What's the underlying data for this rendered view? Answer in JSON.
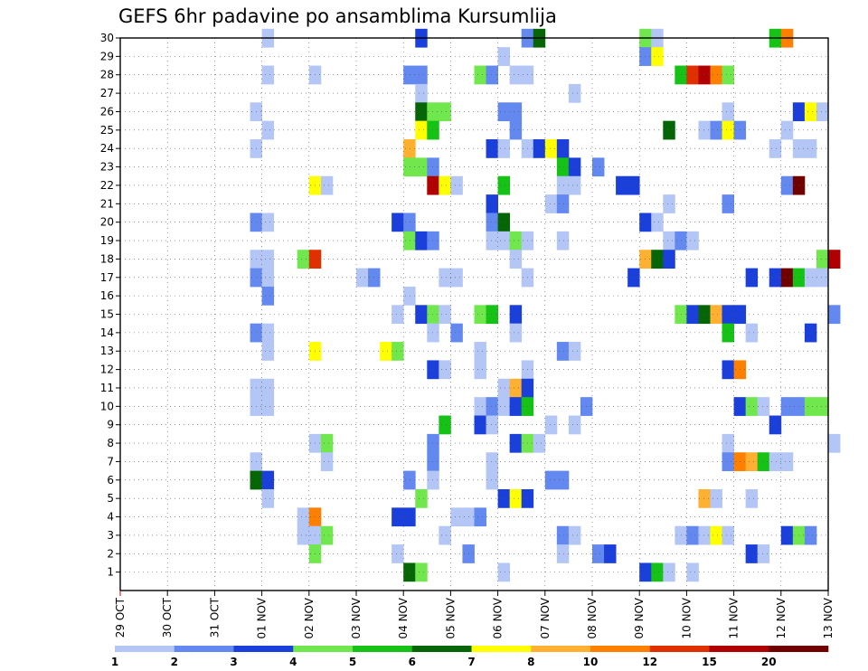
{
  "chart_data": {
    "type": "heatmap",
    "title": "GEFS 6hr padavine po ansamblima Kursumlija",
    "x_tick_labels": [
      "29 OCT",
      "30 OCT",
      "31 OCT",
      "01 NOV",
      "02 NOV",
      "03 NOV",
      "04 NOV",
      "05 NOV",
      "06 NOV",
      "07 NOV",
      "08 NOV",
      "09 NOV",
      "10 NOV",
      "11 NOV",
      "12 NOV",
      "13 NOV"
    ],
    "x_units": "6-hour steps from 29 OCT 00 UTC (4 per day)",
    "y_tick_labels": [
      "1",
      "2",
      "3",
      "4",
      "5",
      "6",
      "7",
      "8",
      "9",
      "10",
      "11",
      "12",
      "13",
      "14",
      "15",
      "16",
      "17",
      "18",
      "19",
      "20",
      "21",
      "22",
      "23",
      "24",
      "25",
      "26",
      "27",
      "28",
      "29",
      "30"
    ],
    "y_units": "ensemble member (0 to 30)",
    "grid": true,
    "colorbar": {
      "levels": [
        1,
        2,
        3,
        4,
        5,
        6,
        7,
        8,
        10,
        12,
        15,
        20
      ],
      "colors": [
        "#b3c6f5",
        "#6389f0",
        "#1a3fdb",
        "#70e84d",
        "#15c215",
        "#066606",
        "#ffff00",
        "#ffb030",
        "#ff7f00",
        "#e03000",
        "#b00000",
        "#700000"
      ]
    },
    "cells": [
      {
        "m": 30,
        "t": 12,
        "v": 1
      },
      {
        "m": 30,
        "t": 25,
        "v": 3
      },
      {
        "m": 30,
        "t": 34,
        "v": 2
      },
      {
        "m": 30,
        "t": 35,
        "v": 6
      },
      {
        "m": 30,
        "t": 44,
        "v": 4
      },
      {
        "m": 30,
        "t": 45,
        "v": 1
      },
      {
        "m": 30,
        "t": 55,
        "v": 5
      },
      {
        "m": 30,
        "t": 56,
        "v": 10
      },
      {
        "m": 29,
        "t": 32,
        "v": 1
      },
      {
        "m": 29,
        "t": 44,
        "v": 2
      },
      {
        "m": 29,
        "t": 45,
        "v": 7
      },
      {
        "m": 28,
        "t": 12,
        "v": 1
      },
      {
        "m": 28,
        "t": 16,
        "v": 1
      },
      {
        "m": 28,
        "t": 24,
        "v": 2
      },
      {
        "m": 28,
        "t": 25,
        "v": 2
      },
      {
        "m": 28,
        "t": 30,
        "v": 4
      },
      {
        "m": 28,
        "t": 31,
        "v": 2
      },
      {
        "m": 28,
        "t": 33,
        "v": 1
      },
      {
        "m": 28,
        "t": 34,
        "v": 1
      },
      {
        "m": 28,
        "t": 47,
        "v": 5
      },
      {
        "m": 28,
        "t": 48,
        "v": 12
      },
      {
        "m": 28,
        "t": 49,
        "v": 15
      },
      {
        "m": 28,
        "t": 50,
        "v": 10
      },
      {
        "m": 28,
        "t": 51,
        "v": 4
      },
      {
        "m": 27,
        "t": 25,
        "v": 1
      },
      {
        "m": 27,
        "t": 38,
        "v": 1
      },
      {
        "m": 26,
        "t": 11,
        "v": 1
      },
      {
        "m": 26,
        "t": 25,
        "v": 6
      },
      {
        "m": 26,
        "t": 26,
        "v": 4
      },
      {
        "m": 26,
        "t": 27,
        "v": 4
      },
      {
        "m": 26,
        "t": 32,
        "v": 2
      },
      {
        "m": 26,
        "t": 33,
        "v": 2
      },
      {
        "m": 26,
        "t": 51,
        "v": 1
      },
      {
        "m": 26,
        "t": 57,
        "v": 3
      },
      {
        "m": 26,
        "t": 58,
        "v": 7
      },
      {
        "m": 26,
        "t": 59,
        "v": 1
      },
      {
        "m": 25,
        "t": 12,
        "v": 1
      },
      {
        "m": 25,
        "t": 25,
        "v": 7
      },
      {
        "m": 25,
        "t": 26,
        "v": 5
      },
      {
        "m": 25,
        "t": 33,
        "v": 2
      },
      {
        "m": 25,
        "t": 46,
        "v": 6
      },
      {
        "m": 25,
        "t": 49,
        "v": 1
      },
      {
        "m": 25,
        "t": 50,
        "v": 2
      },
      {
        "m": 25,
        "t": 51,
        "v": 7
      },
      {
        "m": 25,
        "t": 52,
        "v": 2
      },
      {
        "m": 25,
        "t": 56,
        "v": 1
      },
      {
        "m": 24,
        "t": 11,
        "v": 1
      },
      {
        "m": 24,
        "t": 24,
        "v": 8
      },
      {
        "m": 24,
        "t": 31,
        "v": 3
      },
      {
        "m": 24,
        "t": 32,
        "v": 1
      },
      {
        "m": 24,
        "t": 34,
        "v": 1
      },
      {
        "m": 24,
        "t": 35,
        "v": 3
      },
      {
        "m": 24,
        "t": 36,
        "v": 7
      },
      {
        "m": 24,
        "t": 37,
        "v": 3
      },
      {
        "m": 24,
        "t": 55,
        "v": 1
      },
      {
        "m": 24,
        "t": 57,
        "v": 1
      },
      {
        "m": 24,
        "t": 58,
        "v": 1
      },
      {
        "m": 23,
        "t": 24,
        "v": 4
      },
      {
        "m": 23,
        "t": 25,
        "v": 4
      },
      {
        "m": 23,
        "t": 26,
        "v": 2
      },
      {
        "m": 23,
        "t": 37,
        "v": 5
      },
      {
        "m": 23,
        "t": 38,
        "v": 3
      },
      {
        "m": 23,
        "t": 40,
        "v": 2
      },
      {
        "m": 22,
        "t": 16,
        "v": 7
      },
      {
        "m": 22,
        "t": 17,
        "v": 1
      },
      {
        "m": 22,
        "t": 26,
        "v": 15
      },
      {
        "m": 22,
        "t": 27,
        "v": 7
      },
      {
        "m": 22,
        "t": 28,
        "v": 1
      },
      {
        "m": 22,
        "t": 32,
        "v": 5
      },
      {
        "m": 22,
        "t": 37,
        "v": 1
      },
      {
        "m": 22,
        "t": 38,
        "v": 1
      },
      {
        "m": 22,
        "t": 42,
        "v": 3
      },
      {
        "m": 22,
        "t": 43,
        "v": 3
      },
      {
        "m": 22,
        "t": 56,
        "v": 2
      },
      {
        "m": 22,
        "t": 57,
        "v": 20
      },
      {
        "m": 21,
        "t": 31,
        "v": 3
      },
      {
        "m": 21,
        "t": 36,
        "v": 1
      },
      {
        "m": 21,
        "t": 37,
        "v": 2
      },
      {
        "m": 21,
        "t": 46,
        "v": 1
      },
      {
        "m": 21,
        "t": 51,
        "v": 2
      },
      {
        "m": 20,
        "t": 11,
        "v": 2
      },
      {
        "m": 20,
        "t": 12,
        "v": 1
      },
      {
        "m": 20,
        "t": 23,
        "v": 3
      },
      {
        "m": 20,
        "t": 24,
        "v": 2
      },
      {
        "m": 20,
        "t": 31,
        "v": 2
      },
      {
        "m": 20,
        "t": 32,
        "v": 6
      },
      {
        "m": 20,
        "t": 44,
        "v": 3
      },
      {
        "m": 20,
        "t": 45,
        "v": 1
      },
      {
        "m": 19,
        "t": 24,
        "v": 4
      },
      {
        "m": 19,
        "t": 25,
        "v": 3
      },
      {
        "m": 19,
        "t": 26,
        "v": 2
      },
      {
        "m": 19,
        "t": 31,
        "v": 1
      },
      {
        "m": 19,
        "t": 32,
        "v": 1
      },
      {
        "m": 19,
        "t": 33,
        "v": 4
      },
      {
        "m": 19,
        "t": 34,
        "v": 1
      },
      {
        "m": 19,
        "t": 37,
        "v": 1
      },
      {
        "m": 19,
        "t": 46,
        "v": 1
      },
      {
        "m": 19,
        "t": 47,
        "v": 2
      },
      {
        "m": 19,
        "t": 48,
        "v": 1
      },
      {
        "m": 18,
        "t": 11,
        "v": 1
      },
      {
        "m": 18,
        "t": 12,
        "v": 1
      },
      {
        "m": 18,
        "t": 15,
        "v": 4
      },
      {
        "m": 18,
        "t": 16,
        "v": 12
      },
      {
        "m": 18,
        "t": 33,
        "v": 1
      },
      {
        "m": 18,
        "t": 44,
        "v": 8
      },
      {
        "m": 18,
        "t": 45,
        "v": 6
      },
      {
        "m": 18,
        "t": 46,
        "v": 3
      },
      {
        "m": 18,
        "t": 59,
        "v": 4
      },
      {
        "m": 18,
        "t": 60,
        "v": 15
      },
      {
        "m": 17,
        "t": 11,
        "v": 2
      },
      {
        "m": 17,
        "t": 12,
        "v": 1
      },
      {
        "m": 17,
        "t": 20,
        "v": 1
      },
      {
        "m": 17,
        "t": 21,
        "v": 2
      },
      {
        "m": 17,
        "t": 27,
        "v": 1
      },
      {
        "m": 17,
        "t": 28,
        "v": 1
      },
      {
        "m": 17,
        "t": 34,
        "v": 1
      },
      {
        "m": 17,
        "t": 43,
        "v": 3
      },
      {
        "m": 17,
        "t": 53,
        "v": 3
      },
      {
        "m": 17,
        "t": 55,
        "v": 3
      },
      {
        "m": 17,
        "t": 56,
        "v": 20
      },
      {
        "m": 17,
        "t": 57,
        "v": 5
      },
      {
        "m": 17,
        "t": 58,
        "v": 1
      },
      {
        "m": 17,
        "t": 59,
        "v": 1
      },
      {
        "m": 16,
        "t": 12,
        "v": 2
      },
      {
        "m": 16,
        "t": 24,
        "v": 1
      },
      {
        "m": 15,
        "t": 23,
        "v": 1
      },
      {
        "m": 15,
        "t": 25,
        "v": 3
      },
      {
        "m": 15,
        "t": 26,
        "v": 4
      },
      {
        "m": 15,
        "t": 27,
        "v": 1
      },
      {
        "m": 15,
        "t": 30,
        "v": 4
      },
      {
        "m": 15,
        "t": 31,
        "v": 5
      },
      {
        "m": 15,
        "t": 33,
        "v": 3
      },
      {
        "m": 15,
        "t": 47,
        "v": 4
      },
      {
        "m": 15,
        "t": 48,
        "v": 3
      },
      {
        "m": 15,
        "t": 49,
        "v": 6
      },
      {
        "m": 15,
        "t": 50,
        "v": 8
      },
      {
        "m": 15,
        "t": 51,
        "v": 3
      },
      {
        "m": 15,
        "t": 52,
        "v": 3
      },
      {
        "m": 15,
        "t": 60,
        "v": 2
      },
      {
        "m": 14,
        "t": 11,
        "v": 2
      },
      {
        "m": 14,
        "t": 12,
        "v": 1
      },
      {
        "m": 14,
        "t": 26,
        "v": 1
      },
      {
        "m": 14,
        "t": 28,
        "v": 2
      },
      {
        "m": 14,
        "t": 33,
        "v": 1
      },
      {
        "m": 14,
        "t": 51,
        "v": 5
      },
      {
        "m": 14,
        "t": 53,
        "v": 1
      },
      {
        "m": 14,
        "t": 58,
        "v": 3
      },
      {
        "m": 13,
        "t": 12,
        "v": 1
      },
      {
        "m": 13,
        "t": 16,
        "v": 7
      },
      {
        "m": 13,
        "t": 22,
        "v": 7
      },
      {
        "m": 13,
        "t": 23,
        "v": 4
      },
      {
        "m": 13,
        "t": 30,
        "v": 1
      },
      {
        "m": 13,
        "t": 37,
        "v": 2
      },
      {
        "m": 13,
        "t": 38,
        "v": 1
      },
      {
        "m": 12,
        "t": 26,
        "v": 3
      },
      {
        "m": 12,
        "t": 27,
        "v": 1
      },
      {
        "m": 12,
        "t": 30,
        "v": 1
      },
      {
        "m": 12,
        "t": 34,
        "v": 1
      },
      {
        "m": 12,
        "t": 51,
        "v": 3
      },
      {
        "m": 12,
        "t": 52,
        "v": 10
      },
      {
        "m": 11,
        "t": 11,
        "v": 1
      },
      {
        "m": 11,
        "t": 12,
        "v": 1
      },
      {
        "m": 11,
        "t": 32,
        "v": 1
      },
      {
        "m": 11,
        "t": 33,
        "v": 8
      },
      {
        "m": 11,
        "t": 34,
        "v": 3
      },
      {
        "m": 10,
        "t": 11,
        "v": 1
      },
      {
        "m": 10,
        "t": 12,
        "v": 1
      },
      {
        "m": 10,
        "t": 30,
        "v": 1
      },
      {
        "m": 10,
        "t": 31,
        "v": 2
      },
      {
        "m": 10,
        "t": 32,
        "v": 1
      },
      {
        "m": 10,
        "t": 33,
        "v": 3
      },
      {
        "m": 10,
        "t": 34,
        "v": 5
      },
      {
        "m": 10,
        "t": 39,
        "v": 2
      },
      {
        "m": 10,
        "t": 52,
        "v": 3
      },
      {
        "m": 10,
        "t": 53,
        "v": 4
      },
      {
        "m": 10,
        "t": 54,
        "v": 1
      },
      {
        "m": 10,
        "t": 56,
        "v": 2
      },
      {
        "m": 10,
        "t": 57,
        "v": 2
      },
      {
        "m": 10,
        "t": 58,
        "v": 4
      },
      {
        "m": 10,
        "t": 59,
        "v": 4
      },
      {
        "m": 9,
        "t": 27,
        "v": 5
      },
      {
        "m": 9,
        "t": 30,
        "v": 3
      },
      {
        "m": 9,
        "t": 31,
        "v": 1
      },
      {
        "m": 9,
        "t": 36,
        "v": 1
      },
      {
        "m": 9,
        "t": 38,
        "v": 1
      },
      {
        "m": 9,
        "t": 55,
        "v": 3
      },
      {
        "m": 8,
        "t": 16,
        "v": 1
      },
      {
        "m": 8,
        "t": 17,
        "v": 4
      },
      {
        "m": 8,
        "t": 26,
        "v": 2
      },
      {
        "m": 8,
        "t": 33,
        "v": 3
      },
      {
        "m": 8,
        "t": 34,
        "v": 4
      },
      {
        "m": 8,
        "t": 35,
        "v": 1
      },
      {
        "m": 8,
        "t": 51,
        "v": 1
      },
      {
        "m": 8,
        "t": 60,
        "v": 1
      },
      {
        "m": 7,
        "t": 11,
        "v": 1
      },
      {
        "m": 7,
        "t": 17,
        "v": 1
      },
      {
        "m": 7,
        "t": 26,
        "v": 2
      },
      {
        "m": 7,
        "t": 31,
        "v": 1
      },
      {
        "m": 7,
        "t": 51,
        "v": 2
      },
      {
        "m": 7,
        "t": 52,
        "v": 10
      },
      {
        "m": 7,
        "t": 53,
        "v": 8
      },
      {
        "m": 7,
        "t": 54,
        "v": 5
      },
      {
        "m": 7,
        "t": 55,
        "v": 1
      },
      {
        "m": 7,
        "t": 56,
        "v": 1
      },
      {
        "m": 6,
        "t": 11,
        "v": 6
      },
      {
        "m": 6,
        "t": 12,
        "v": 3
      },
      {
        "m": 6,
        "t": 24,
        "v": 2
      },
      {
        "m": 6,
        "t": 26,
        "v": 1
      },
      {
        "m": 6,
        "t": 31,
        "v": 1
      },
      {
        "m": 6,
        "t": 36,
        "v": 2
      },
      {
        "m": 6,
        "t": 37,
        "v": 2
      },
      {
        "m": 5,
        "t": 12,
        "v": 1
      },
      {
        "m": 5,
        "t": 25,
        "v": 4
      },
      {
        "m": 5,
        "t": 32,
        "v": 3
      },
      {
        "m": 5,
        "t": 33,
        "v": 7
      },
      {
        "m": 5,
        "t": 34,
        "v": 3
      },
      {
        "m": 5,
        "t": 49,
        "v": 8
      },
      {
        "m": 5,
        "t": 50,
        "v": 1
      },
      {
        "m": 5,
        "t": 53,
        "v": 1
      },
      {
        "m": 4,
        "t": 15,
        "v": 1
      },
      {
        "m": 4,
        "t": 16,
        "v": 10
      },
      {
        "m": 4,
        "t": 23,
        "v": 3
      },
      {
        "m": 4,
        "t": 24,
        "v": 3
      },
      {
        "m": 4,
        "t": 28,
        "v": 1
      },
      {
        "m": 4,
        "t": 29,
        "v": 1
      },
      {
        "m": 4,
        "t": 30,
        "v": 2
      },
      {
        "m": 3,
        "t": 15,
        "v": 1
      },
      {
        "m": 3,
        "t": 16,
        "v": 1
      },
      {
        "m": 3,
        "t": 17,
        "v": 4
      },
      {
        "m": 3,
        "t": 27,
        "v": 1
      },
      {
        "m": 3,
        "t": 37,
        "v": 2
      },
      {
        "m": 3,
        "t": 38,
        "v": 1
      },
      {
        "m": 3,
        "t": 47,
        "v": 1
      },
      {
        "m": 3,
        "t": 48,
        "v": 2
      },
      {
        "m": 3,
        "t": 49,
        "v": 1
      },
      {
        "m": 3,
        "t": 50,
        "v": 7
      },
      {
        "m": 3,
        "t": 51,
        "v": 1
      },
      {
        "m": 3,
        "t": 56,
        "v": 3
      },
      {
        "m": 3,
        "t": 57,
        "v": 4
      },
      {
        "m": 3,
        "t": 58,
        "v": 2
      },
      {
        "m": 2,
        "t": 16,
        "v": 4
      },
      {
        "m": 2,
        "t": 23,
        "v": 1
      },
      {
        "m": 2,
        "t": 29,
        "v": 2
      },
      {
        "m": 2,
        "t": 37,
        "v": 1
      },
      {
        "m": 2,
        "t": 40,
        "v": 2
      },
      {
        "m": 2,
        "t": 41,
        "v": 3
      },
      {
        "m": 2,
        "t": 53,
        "v": 3
      },
      {
        "m": 2,
        "t": 54,
        "v": 1
      },
      {
        "m": 1,
        "t": 24,
        "v": 6
      },
      {
        "m": 1,
        "t": 25,
        "v": 4
      },
      {
        "m": 1,
        "t": 32,
        "v": 1
      },
      {
        "m": 1,
        "t": 44,
        "v": 3
      },
      {
        "m": 1,
        "t": 45,
        "v": 5
      },
      {
        "m": 1,
        "t": 46,
        "v": 1
      },
      {
        "m": 1,
        "t": 48,
        "v": 1
      }
    ]
  }
}
